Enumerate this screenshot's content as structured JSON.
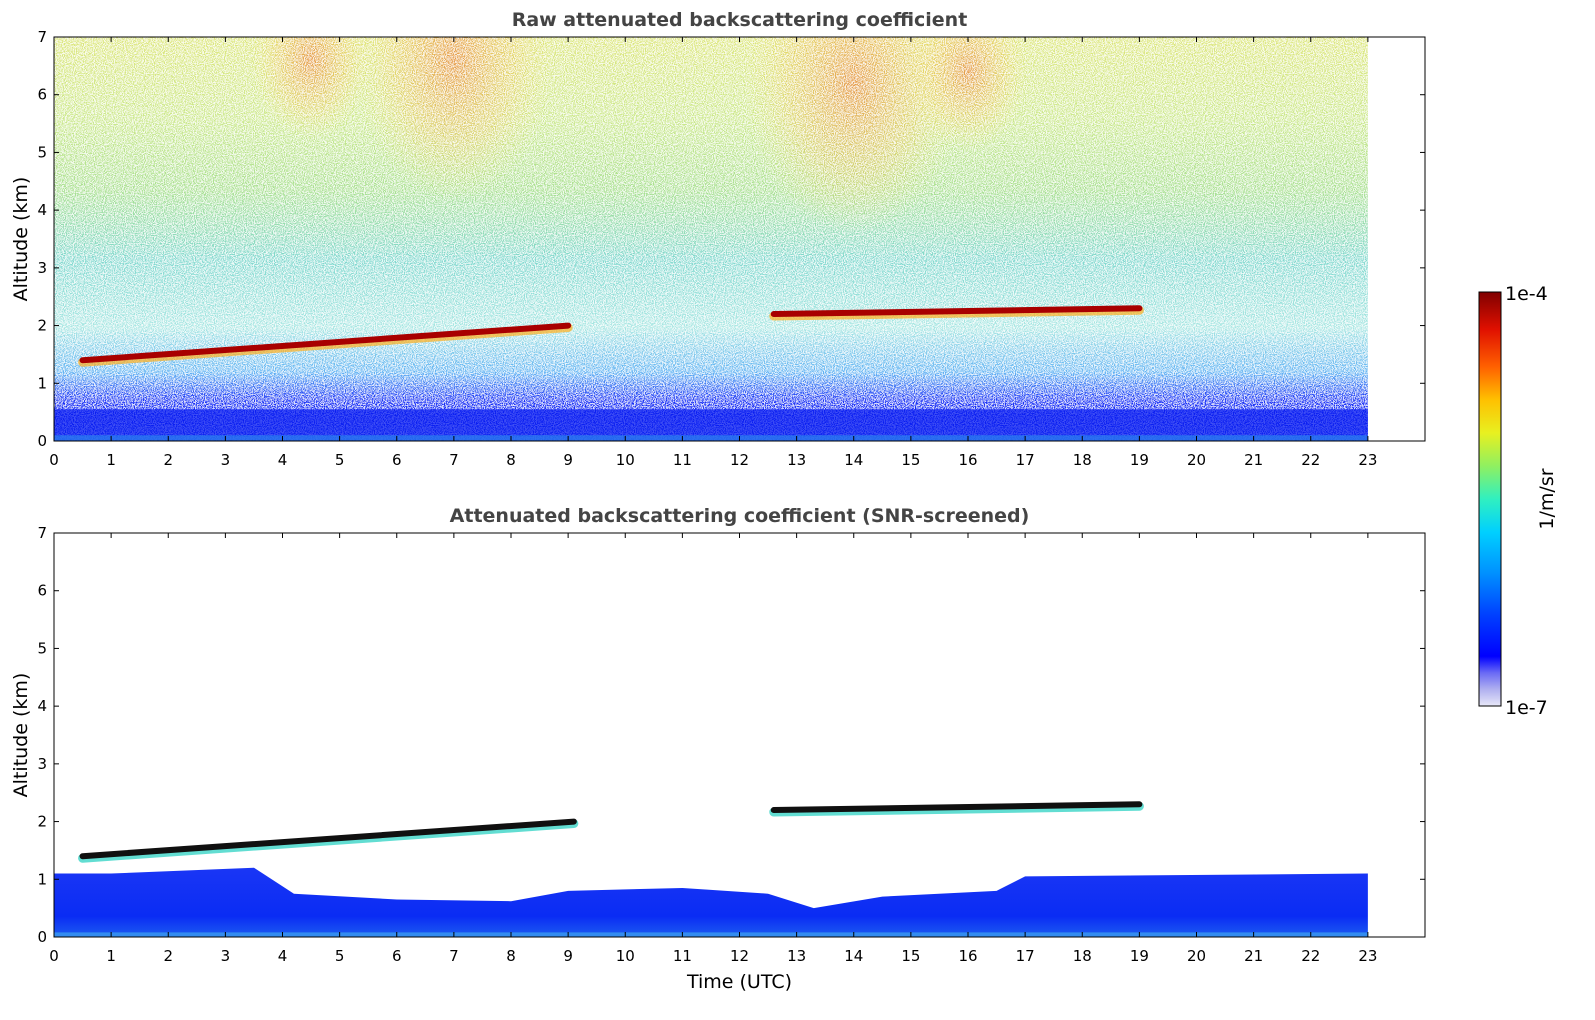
{
  "chart_data": [
    {
      "type": "heatmap",
      "panel": "top",
      "title": "Raw attenuated backscattering coefficient",
      "xlabel": "",
      "ylabel": "Altitude (km)",
      "xlim": [
        0,
        24
      ],
      "ylim": [
        0,
        7
      ],
      "x_ticks": [
        "0",
        "1",
        "2",
        "3",
        "4",
        "5",
        "6",
        "7",
        "8",
        "9",
        "10",
        "11",
        "12",
        "13",
        "14",
        "15",
        "16",
        "17",
        "18",
        "19",
        "20",
        "21",
        "22",
        "23"
      ],
      "y_ticks": [
        "0",
        "1",
        "2",
        "3",
        "4",
        "5",
        "6",
        "7"
      ],
      "data_extent_hours": [
        0,
        23
      ],
      "cloud_layers": [
        {
          "start_hour": 0.5,
          "end_hour": 9.0,
          "base_km_start": 1.4,
          "base_km_end": 2.0
        },
        {
          "start_hour": 12.6,
          "end_hour": 19.0,
          "base_km_start": 2.2,
          "base_km_end": 2.3
        }
      ]
    },
    {
      "type": "heatmap",
      "panel": "bottom",
      "title": "Attenuated backscattering coefficient (SNR-screened)",
      "xlabel": "Time (UTC)",
      "ylabel": "Altitude (km)",
      "xlim": [
        0,
        24
      ],
      "ylim": [
        0,
        7
      ],
      "x_ticks": [
        "0",
        "1",
        "2",
        "3",
        "4",
        "5",
        "6",
        "7",
        "8",
        "9",
        "10",
        "11",
        "12",
        "13",
        "14",
        "15",
        "16",
        "17",
        "18",
        "19",
        "20",
        "21",
        "22",
        "23"
      ],
      "y_ticks": [
        "0",
        "1",
        "2",
        "3",
        "4",
        "5",
        "6",
        "7"
      ],
      "data_extent_hours": [
        0,
        23
      ],
      "cloud_layers": [
        {
          "start_hour": 0.5,
          "end_hour": 9.1,
          "base_km_start": 1.4,
          "base_km_end": 2.0
        },
        {
          "start_hour": 12.6,
          "end_hour": 19.0,
          "base_km_start": 2.2,
          "base_km_end": 2.3
        }
      ],
      "boundary_layer_top_km": [
        [
          0,
          1.1
        ],
        [
          1,
          1.1
        ],
        [
          3.5,
          1.2
        ],
        [
          4.2,
          0.75
        ],
        [
          6,
          0.65
        ],
        [
          8,
          0.62
        ],
        [
          9,
          0.8
        ],
        [
          11,
          0.85
        ],
        [
          12.5,
          0.75
        ],
        [
          13.3,
          0.5
        ],
        [
          14.5,
          0.7
        ],
        [
          16.5,
          0.8
        ],
        [
          17,
          1.05
        ],
        [
          23,
          1.1
        ]
      ]
    }
  ],
  "colorbar": {
    "label": "1/m/sr",
    "max_label": "1e-4",
    "min_label": "1e-7",
    "scale": "log",
    "colors": [
      "#e8e8f8",
      "#b0b0f0",
      "#6a6af5",
      "#0000ff",
      "#0040ff",
      "#0090ff",
      "#00d0ff",
      "#30f0c0",
      "#90f060",
      "#e8f020",
      "#ffc000",
      "#ff6000",
      "#e01000",
      "#800000"
    ]
  }
}
